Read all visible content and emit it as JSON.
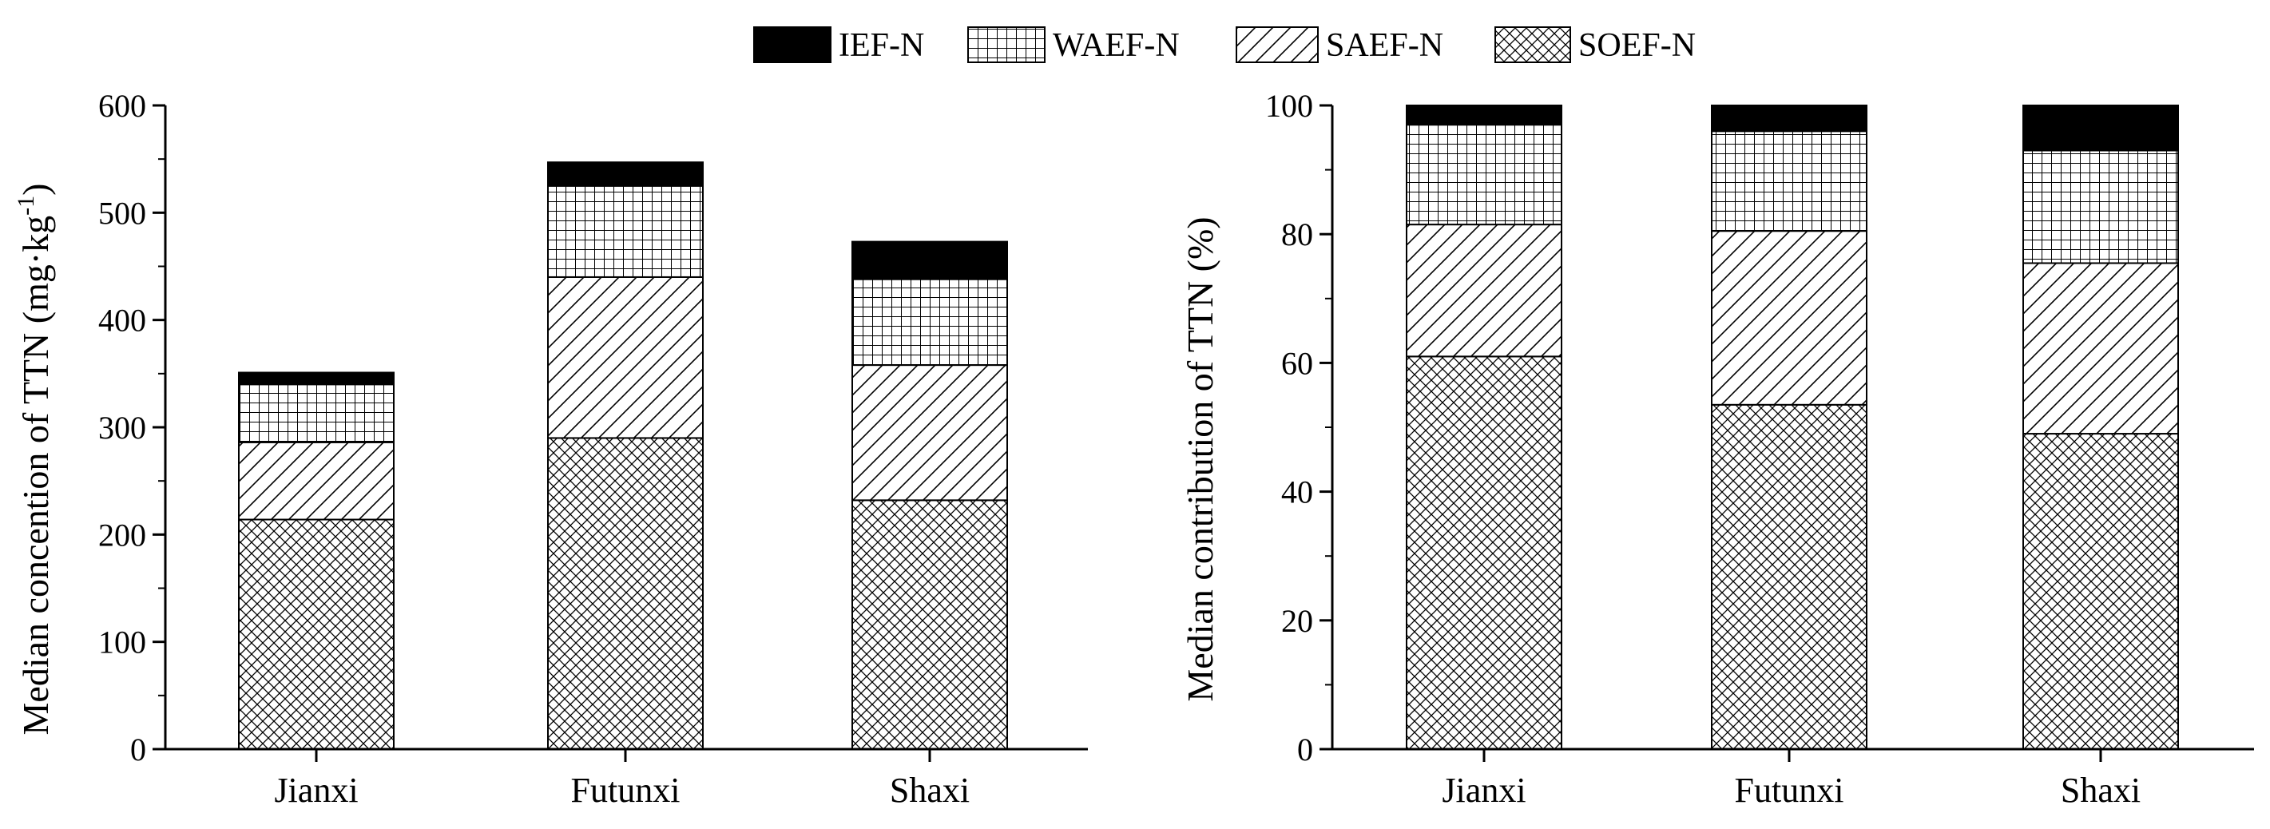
{
  "legend": [
    {
      "name": "IEF-N",
      "pattern": "solid"
    },
    {
      "name": "WAEF-N",
      "pattern": "grid"
    },
    {
      "name": "SAEF-N",
      "pattern": "diagonal"
    },
    {
      "name": "SOEF-N",
      "pattern": "crosshatch"
    }
  ],
  "chart_data": [
    {
      "type": "bar",
      "stacked": true,
      "ylabel": "Median concention of TTN (mg·kg⁻¹)",
      "ylabel_main": "Median concention of TTN (mg·kg",
      "ylabel_sup": "-1",
      "ylabel_close": ")",
      "xlabel": "",
      "ylim": [
        0,
        600
      ],
      "yticks": [
        0,
        100,
        200,
        300,
        400,
        500,
        600
      ],
      "categories": [
        "Jianxi",
        "Futunxi",
        "Shaxi"
      ],
      "series": [
        {
          "name": "SOEF-N",
          "values": [
            214,
            290,
            232
          ]
        },
        {
          "name": "SAEF-N",
          "values": [
            72,
            150,
            126
          ]
        },
        {
          "name": "WAEF-N",
          "values": [
            54,
            85,
            80
          ]
        },
        {
          "name": "IEF-N",
          "values": [
            11,
            22,
            35
          ]
        }
      ],
      "grid": false,
      "legend_position": "top-center"
    },
    {
      "type": "bar",
      "stacked": true,
      "ylabel": "Median contribution of TTN  (%)",
      "xlabel": "",
      "ylim": [
        0,
        100
      ],
      "yticks": [
        0,
        20,
        40,
        60,
        80,
        100
      ],
      "categories": [
        "Jianxi",
        "Futunxi",
        "Shaxi"
      ],
      "series": [
        {
          "name": "SOEF-N",
          "values": [
            61,
            53.5,
            49
          ]
        },
        {
          "name": "SAEF-N",
          "values": [
            20.5,
            27,
            26.5
          ]
        },
        {
          "name": "WAEF-N",
          "values": [
            15.5,
            15.5,
            17.5
          ]
        },
        {
          "name": "IEF-N",
          "values": [
            3,
            4,
            7
          ]
        }
      ],
      "grid": false,
      "legend_position": "top-center"
    }
  ]
}
